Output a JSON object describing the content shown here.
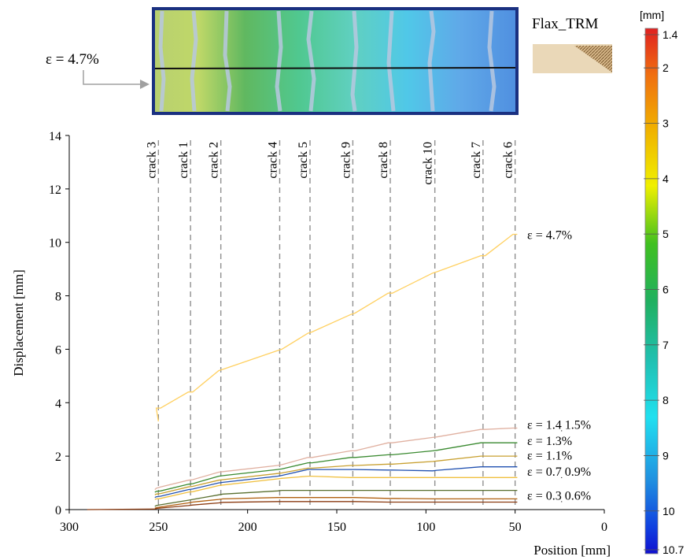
{
  "inset": {
    "strain_label": "ε = 4.7%",
    "specimen_label": "Flax_TRM"
  },
  "colorbar": {
    "unit": "[mm]",
    "ticks": [
      "1.4",
      "2",
      "3",
      "4",
      "5",
      "6",
      "7",
      "8",
      "9",
      "10",
      "10.7"
    ],
    "tick_values": [
      1.4,
      2,
      3,
      4,
      5,
      6,
      7,
      8,
      9,
      10,
      10.7
    ],
    "range": [
      1.4,
      10.7
    ],
    "colors": [
      "#e02020",
      "#f07010",
      "#f0b000",
      "#f0f000",
      "#40c020",
      "#20b060",
      "#20c0b0",
      "#20e0f0",
      "#2090e0",
      "#1040e0",
      "#1010d0"
    ]
  },
  "chart_data": {
    "type": "line",
    "xlabel": "Position [mm]",
    "ylabel": "Displacement [mm]",
    "xlim": [
      300,
      0
    ],
    "ylim": [
      0,
      14
    ],
    "x_reversed": true,
    "xticks": [
      "300",
      "250",
      "200",
      "150",
      "100",
      "50",
      "0"
    ],
    "yticks": [
      "0",
      "2",
      "4",
      "6",
      "8",
      "10",
      "12",
      "14"
    ],
    "grid": false,
    "cracks": [
      {
        "name": "crack 3",
        "x": 250
      },
      {
        "name": "crack 1",
        "x": 232
      },
      {
        "name": "crack 2",
        "x": 215
      },
      {
        "name": "crack 4",
        "x": 182
      },
      {
        "name": "crack 5",
        "x": 165
      },
      {
        "name": "crack 9",
        "x": 141
      },
      {
        "name": "crack 8",
        "x": 120
      },
      {
        "name": "crack 10",
        "x": 95
      },
      {
        "name": "crack 7",
        "x": 68
      },
      {
        "name": "crack 6",
        "x": 50
      }
    ],
    "series_labels": [
      {
        "text": "ε = 4.7%",
        "y": 10.3
      },
      {
        "text": "ε = 1.4ׅ  1.5%",
        "y": 3.2
      },
      {
        "text": "ε = 1.3%",
        "y": 2.6
      },
      {
        "text": "ε = 1.1%",
        "y": 2.05
      },
      {
        "text": "ε = 0.7ׅ  0.9%",
        "y": 1.45
      },
      {
        "text": "ε = 0.3ׅ  0.6%",
        "y": 0.55
      }
    ],
    "series": [
      {
        "color": "#ffd060",
        "start": 250,
        "steps": [
          3.3,
          3.8,
          3.8,
          4.4,
          4.4,
          5.2,
          5.25,
          5.95,
          6.0,
          6.6,
          6.65,
          7.3,
          7.35,
          8.1,
          8.1,
          8.85,
          8.9,
          9.5,
          9.5,
          10.3
        ]
      },
      {
        "color": "#e0b0a0",
        "start": 252,
        "steps": [
          0.75,
          0.8,
          0.85,
          1.1,
          1.12,
          1.4,
          1.42,
          1.65,
          1.68,
          1.95,
          1.95,
          2.2,
          2.2,
          2.5,
          2.5,
          2.7,
          2.72,
          3.0,
          3.0,
          3.05
        ]
      },
      {
        "color": "#3a8a30",
        "start": 252,
        "steps": [
          0.65,
          0.68,
          0.7,
          0.95,
          0.97,
          1.25,
          1.27,
          1.5,
          1.52,
          1.75,
          1.75,
          1.95,
          1.95,
          2.05,
          2.05,
          2.2,
          2.22,
          2.5,
          2.5,
          2.5
        ]
      },
      {
        "color": "#c8a030",
        "start": 252,
        "steps": [
          0.55,
          0.58,
          0.6,
          0.85,
          0.87,
          1.1,
          1.12,
          1.35,
          1.37,
          1.55,
          1.55,
          1.65,
          1.65,
          1.7,
          1.7,
          1.8,
          1.82,
          2.0,
          2.0,
          2.0
        ]
      },
      {
        "color": "#2050b0",
        "start": 252,
        "steps": [
          0.45,
          0.48,
          0.5,
          0.75,
          0.77,
          1.0,
          1.02,
          1.25,
          1.28,
          1.5,
          1.5,
          1.5,
          1.5,
          1.48,
          1.48,
          1.45,
          1.47,
          1.6,
          1.6,
          1.6
        ]
      },
      {
        "color": "#f0c040",
        "start": 252,
        "steps": [
          0.38,
          0.4,
          0.42,
          0.65,
          0.67,
          0.9,
          0.92,
          1.15,
          1.17,
          1.25,
          1.25,
          1.2,
          1.2,
          1.2,
          1.2,
          1.2,
          1.2,
          1.2,
          1.2,
          1.2
        ]
      },
      {
        "color": "#5a7030",
        "start": 252,
        "steps": [
          0.12,
          0.15,
          0.18,
          0.35,
          0.38,
          0.55,
          0.58,
          0.7,
          0.72,
          0.72,
          0.72,
          0.72,
          0.72,
          0.72,
          0.72,
          0.72,
          0.72,
          0.72,
          0.72,
          0.72
        ]
      },
      {
        "color": "#b06010",
        "start": 252,
        "steps": [
          0.05,
          0.07,
          0.1,
          0.25,
          0.28,
          0.38,
          0.4,
          0.45,
          0.45,
          0.45,
          0.45,
          0.45,
          0.45,
          0.42,
          0.42,
          0.4,
          0.4,
          0.4,
          0.4,
          0.4
        ]
      },
      {
        "color": "#8a3a10",
        "start": 252,
        "steps": [
          0.02,
          0.04,
          0.06,
          0.15,
          0.17,
          0.25,
          0.27,
          0.3,
          0.3,
          0.3,
          0.3,
          0.3,
          0.3,
          0.28,
          0.28,
          0.28,
          0.28,
          0.28,
          0.28,
          0.28
        ]
      }
    ]
  }
}
